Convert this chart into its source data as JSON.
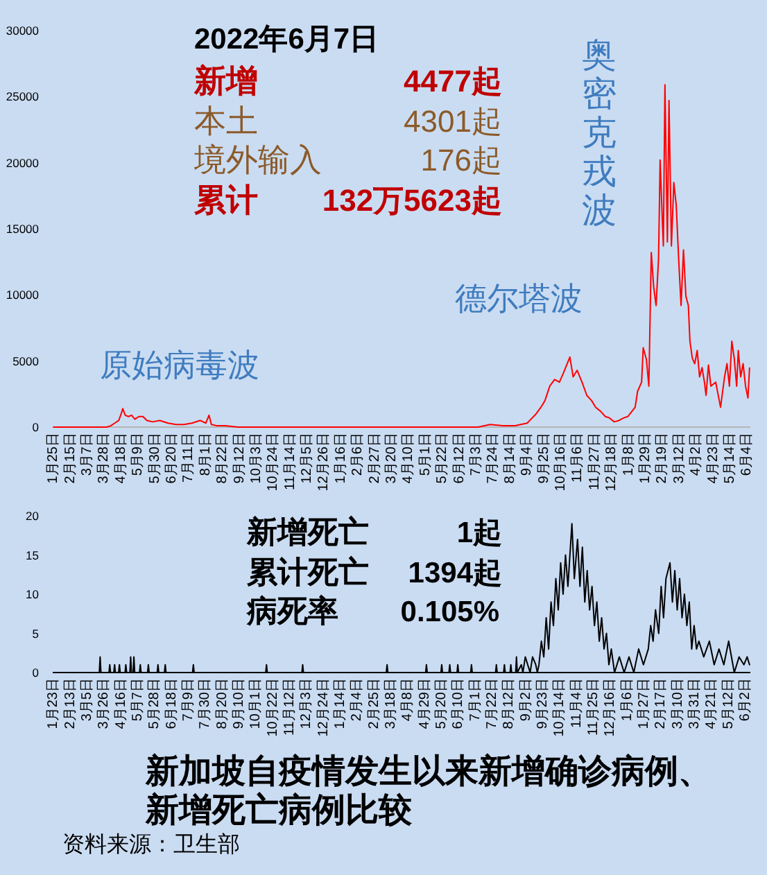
{
  "chart_data": [
    {
      "type": "line",
      "color": "#ff0000",
      "x": [
        "2020-01-25",
        "2020-02-10",
        "2020-02-15",
        "2020-03-01",
        "2020-03-10",
        "2020-03-20",
        "2020-03-31",
        "2020-04-05",
        "2020-04-10",
        "2020-04-15",
        "2020-04-18",
        "2020-04-20",
        "2020-04-23",
        "2020-04-27",
        "2020-05-01",
        "2020-05-05",
        "2020-05-10",
        "2020-05-15",
        "2020-05-20",
        "2020-05-27",
        "2020-06-05",
        "2020-06-15",
        "2020-06-25",
        "2020-07-05",
        "2020-07-15",
        "2020-07-25",
        "2020-08-01",
        "2020-08-05",
        "2020-08-08",
        "2020-08-15",
        "2020-08-25",
        "2020-09-10",
        "2020-10-01",
        "2020-11-15",
        "2020-12-31",
        "2021-02-15",
        "2021-04-01",
        "2021-05-01",
        "2021-05-20",
        "2021-06-15",
        "2021-07-05",
        "2021-07-20",
        "2021-08-05",
        "2021-08-20",
        "2021-09-04",
        "2021-09-15",
        "2021-09-21",
        "2021-09-26",
        "2021-10-02",
        "2021-10-08",
        "2021-10-14",
        "2021-10-19",
        "2021-10-27",
        "2021-10-31",
        "2021-11-05",
        "2021-11-11",
        "2021-11-17",
        "2021-11-23",
        "2021-11-28",
        "2021-12-04",
        "2021-12-10",
        "2021-12-15",
        "2021-12-21",
        "2021-12-27",
        "2022-01-02",
        "2022-01-07",
        "2022-01-16",
        "2022-01-19",
        "2022-01-24",
        "2022-01-26",
        "2022-01-30",
        "2022-02-02",
        "2022-02-05",
        "2022-02-08",
        "2022-02-11",
        "2022-02-14",
        "2022-02-16",
        "2022-02-18",
        "2022-02-20",
        "2022-02-22",
        "2022-02-25",
        "2022-02-27",
        "2022-03-02",
        "2022-03-05",
        "2022-03-08",
        "2022-03-11",
        "2022-03-14",
        "2022-03-17",
        "2022-03-20",
        "2022-03-23",
        "2022-03-25",
        "2022-03-28",
        "2022-03-31",
        "2022-04-03",
        "2022-04-06",
        "2022-04-09",
        "2022-04-12",
        "2022-04-14",
        "2022-04-17",
        "2022-04-20",
        "2022-04-26",
        "2022-05-02",
        "2022-05-07",
        "2022-05-10",
        "2022-05-13",
        "2022-05-16",
        "2022-05-19",
        "2022-05-22",
        "2022-05-24",
        "2022-05-27",
        "2022-05-30",
        "2022-06-02",
        "2022-06-05",
        "2022-06-07"
      ],
      "values": [
        0,
        0,
        0,
        0,
        0,
        0,
        0,
        100,
        300,
        500,
        1000,
        1400,
        900,
        800,
        900,
        600,
        800,
        800,
        500,
        400,
        500,
        300,
        200,
        200,
        300,
        500,
        300,
        900,
        200,
        100,
        100,
        0,
        0,
        0,
        0,
        0,
        0,
        0,
        0,
        0,
        0,
        200,
        100,
        100,
        300,
        1000,
        1500,
        2000,
        3100,
        3600,
        3400,
        4100,
        5300,
        3800,
        4300,
        3400,
        2400,
        2000,
        1500,
        1200,
        800,
        700,
        400,
        500,
        700,
        800,
        1500,
        2700,
        3400,
        6000,
        5100,
        3100,
        13200,
        10600,
        9200,
        12700,
        20200,
        16800,
        13700,
        25900,
        14000,
        24700,
        13700,
        18500,
        16800,
        12700,
        9200,
        13400,
        9900,
        9200,
        6500,
        5200,
        4800,
        5800,
        3800,
        4500,
        3400,
        2400,
        4700,
        3100,
        3400,
        1500,
        3800,
        4800,
        3100,
        6500,
        5200,
        3100,
        5800,
        3800,
        4800,
        3100,
        2200,
        4477
      ],
      "xlim": [
        "2020-01-24",
        "2022-06-08"
      ],
      "xticks": [
        {
          "value": "2020-01-25",
          "label": "1月25日"
        },
        {
          "value": "2020-02-15",
          "label": "2月15日"
        },
        {
          "value": "2020-03-07",
          "label": "3月7日"
        },
        {
          "value": "2020-03-28",
          "label": "3月28日"
        },
        {
          "value": "2020-04-18",
          "label": "4月18日"
        },
        {
          "value": "2020-05-09",
          "label": "5月9日"
        },
        {
          "value": "2020-05-30",
          "label": "5月30日"
        },
        {
          "value": "2020-06-20",
          "label": "6月20日"
        },
        {
          "value": "2020-07-11",
          "label": "7月11日"
        },
        {
          "value": "2020-08-01",
          "label": "8月1日"
        },
        {
          "value": "2020-08-22",
          "label": "8月22日"
        },
        {
          "value": "2020-09-12",
          "label": "9月12日"
        },
        {
          "value": "2020-10-03",
          "label": "10月3日"
        },
        {
          "value": "2020-10-24",
          "label": "10月24日"
        },
        {
          "value": "2020-11-14",
          "label": "11月14日"
        },
        {
          "value": "2020-12-05",
          "label": "12月5日"
        },
        {
          "value": "2020-12-26",
          "label": "12月26日"
        },
        {
          "value": "2021-01-16",
          "label": "1月16日"
        },
        {
          "value": "2021-02-06",
          "label": "2月6日"
        },
        {
          "value": "2021-02-27",
          "label": "2月27日"
        },
        {
          "value": "2021-03-20",
          "label": "3月20日"
        },
        {
          "value": "2021-04-10",
          "label": "4月10日"
        },
        {
          "value": "2021-05-01",
          "label": "5月1日"
        },
        {
          "value": "2021-05-22",
          "label": "5月22日"
        },
        {
          "value": "2021-06-12",
          "label": "6月12日"
        },
        {
          "value": "2021-07-03",
          "label": "7月3日"
        },
        {
          "value": "2021-07-24",
          "label": "7月24日"
        },
        {
          "value": "2021-08-14",
          "label": "8月14日"
        },
        {
          "value": "2021-09-04",
          "label": "9月4日"
        },
        {
          "value": "2021-09-25",
          "label": "9月25日"
        },
        {
          "value": "2021-10-16",
          "label": "10月16日"
        },
        {
          "value": "2021-11-06",
          "label": "11月6日"
        },
        {
          "value": "2021-11-27",
          "label": "11月27日"
        },
        {
          "value": "2021-12-18",
          "label": "12月18日"
        },
        {
          "value": "2022-01-08",
          "label": "1月8日"
        },
        {
          "value": "2022-01-29",
          "label": "1月29日"
        },
        {
          "value": "2022-02-19",
          "label": "2月19日"
        },
        {
          "value": "2022-03-12",
          "label": "3月12日"
        },
        {
          "value": "2022-04-02",
          "label": "4月2日"
        },
        {
          "value": "2022-04-23",
          "label": "4月23日"
        },
        {
          "value": "2022-05-14",
          "label": "5月14日"
        },
        {
          "value": "2022-06-04",
          "label": "6月4日"
        }
      ],
      "ylim": [
        0,
        30000
      ],
      "yticks": [
        0,
        5000,
        10000,
        15000,
        20000,
        25000,
        30000
      ],
      "annotations": [
        "2022年6月7日",
        "新增",
        "4477起",
        "本土",
        "4301起",
        "境外输入",
        "176起",
        "累计",
        "132万5623起",
        "原始病毒波",
        "德尔塔波",
        "奥密克戎波"
      ]
    },
    {
      "type": "line",
      "color": "#000000",
      "title": "新加坡自疫情发生以来新增确诊病例、新增死亡病例比较",
      "x": [
        "2020-01-23",
        "2020-03-20",
        "2020-03-21",
        "2020-03-22",
        "2020-04-01",
        "2020-04-02",
        "2020-04-03",
        "2020-04-07",
        "2020-04-08",
        "2020-04-09",
        "2020-04-13",
        "2020-04-14",
        "2020-04-15",
        "2020-04-21",
        "2020-04-22",
        "2020-04-23",
        "2020-04-27",
        "2020-04-28",
        "2020-04-29",
        "2020-05-01",
        "2020-05-02",
        "2020-05-03",
        "2020-05-09",
        "2020-05-10",
        "2020-05-11",
        "2020-05-19",
        "2020-05-20",
        "2020-05-21",
        "2020-05-31",
        "2020-06-01",
        "2020-06-02",
        "2020-06-09",
        "2020-06-10",
        "2020-06-11",
        "2020-07-14",
        "2020-07-15",
        "2020-07-16",
        "2020-10-13",
        "2020-10-14",
        "2020-10-15",
        "2020-11-27",
        "2020-11-28",
        "2020-11-29",
        "2021-03-12",
        "2021-03-13",
        "2021-03-14",
        "2021-04-30",
        "2021-05-01",
        "2021-05-02",
        "2021-05-19",
        "2021-05-20",
        "2021-05-21",
        "2021-05-29",
        "2021-05-30",
        "2021-05-31",
        "2021-06-08",
        "2021-06-09",
        "2021-06-10",
        "2021-06-25",
        "2021-06-26",
        "2021-06-27",
        "2021-07-26",
        "2021-07-27",
        "2021-07-28",
        "2021-08-05",
        "2021-08-06",
        "2021-08-07",
        "2021-08-13",
        "2021-08-14",
        "2021-08-15",
        "2021-08-20",
        "2021-08-21",
        "2021-08-22",
        "2021-08-27",
        "2021-08-29",
        "2021-09-01",
        "2021-09-04",
        "2021-09-07",
        "2021-09-10",
        "2021-09-14",
        "2021-09-16",
        "2021-09-18",
        "2021-09-21",
        "2021-09-24",
        "2021-09-27",
        "2021-09-30",
        "2021-10-03",
        "2021-10-06",
        "2021-10-09",
        "2021-10-12",
        "2021-10-15",
        "2021-10-18",
        "2021-10-21",
        "2021-10-24",
        "2021-10-29",
        "2021-11-01",
        "2021-11-05",
        "2021-11-08",
        "2021-11-11",
        "2021-11-14",
        "2021-11-17",
        "2021-11-20",
        "2021-11-23",
        "2021-11-26",
        "2021-11-29",
        "2021-12-02",
        "2021-12-05",
        "2021-12-08",
        "2021-12-11",
        "2021-12-14",
        "2021-12-17",
        "2021-12-21",
        "2021-12-27",
        "2022-01-02",
        "2022-01-08",
        "2022-01-14",
        "2022-01-20",
        "2022-01-26",
        "2022-02-01",
        "2022-02-04",
        "2022-02-07",
        "2022-02-10",
        "2022-02-14",
        "2022-02-17",
        "2022-02-20",
        "2022-02-23",
        "2022-02-28",
        "2022-03-03",
        "2022-03-06",
        "2022-03-09",
        "2022-03-12",
        "2022-03-15",
        "2022-03-18",
        "2022-03-21",
        "2022-03-24",
        "2022-03-27",
        "2022-03-30",
        "2022-04-02",
        "2022-04-05",
        "2022-04-11",
        "2022-04-18",
        "2022-04-24",
        "2022-04-30",
        "2022-05-06",
        "2022-05-12",
        "2022-05-19",
        "2022-05-25",
        "2022-05-31",
        "2022-06-04",
        "2022-06-07"
      ],
      "values": [
        0,
        0,
        2,
        0,
        0,
        1,
        0,
        0,
        1,
        0,
        0,
        1,
        0,
        0,
        1,
        0,
        0,
        2,
        0,
        0,
        2,
        0,
        0,
        1,
        0,
        0,
        1,
        0,
        0,
        1,
        0,
        0,
        1,
        0,
        0,
        1,
        0,
        0,
        1,
        0,
        0,
        1,
        0,
        0,
        1,
        0,
        0,
        1,
        0,
        0,
        1,
        0,
        0,
        1,
        0,
        0,
        1,
        0,
        0,
        1,
        0,
        0,
        1,
        0,
        0,
        1,
        0,
        0,
        1,
        0,
        0,
        2,
        0,
        1,
        0,
        2,
        1,
        0,
        2,
        1,
        0,
        1,
        4,
        2,
        7,
        3,
        9,
        6,
        12,
        8,
        14,
        10,
        15,
        11,
        19,
        12,
        17,
        11,
        16,
        9,
        13,
        8,
        11,
        6,
        9,
        4,
        7,
        3,
        5,
        1,
        3,
        0,
        2,
        0,
        2,
        0,
        3,
        1,
        3,
        6,
        4,
        8,
        5,
        11,
        7,
        12,
        14,
        9,
        13,
        8,
        12,
        7,
        10,
        6,
        9,
        3,
        6,
        3,
        4,
        2,
        4,
        1,
        3,
        1,
        4,
        0,
        2,
        1,
        2,
        1
      ],
      "xlim": [
        "2020-01-22",
        "2022-06-08"
      ],
      "xticks": [
        {
          "value": "2020-01-23",
          "label": "1月23日"
        },
        {
          "value": "2020-02-13",
          "label": "2月13日"
        },
        {
          "value": "2020-03-05",
          "label": "3月5日"
        },
        {
          "value": "2020-03-26",
          "label": "3月26日"
        },
        {
          "value": "2020-04-16",
          "label": "4月16日"
        },
        {
          "value": "2020-05-07",
          "label": "5月7日"
        },
        {
          "value": "2020-05-28",
          "label": "5月28日"
        },
        {
          "value": "2020-06-18",
          "label": "6月18日"
        },
        {
          "value": "2020-07-09",
          "label": "7月9日"
        },
        {
          "value": "2020-07-30",
          "label": "7月30日"
        },
        {
          "value": "2020-08-20",
          "label": "8月20日"
        },
        {
          "value": "2020-09-10",
          "label": "9月10日"
        },
        {
          "value": "2020-10-01",
          "label": "10月1日"
        },
        {
          "value": "2020-10-22",
          "label": "10月22日"
        },
        {
          "value": "2020-11-12",
          "label": "11月12日"
        },
        {
          "value": "2020-12-03",
          "label": "12月3日"
        },
        {
          "value": "2020-12-24",
          "label": "12月24日"
        },
        {
          "value": "2021-01-14",
          "label": "1月14日"
        },
        {
          "value": "2021-02-04",
          "label": "2月4日"
        },
        {
          "value": "2021-02-25",
          "label": "2月25日"
        },
        {
          "value": "2021-03-18",
          "label": "3月18日"
        },
        {
          "value": "2021-04-08",
          "label": "4月8日"
        },
        {
          "value": "2021-04-29",
          "label": "4月29日"
        },
        {
          "value": "2021-05-20",
          "label": "5月20日"
        },
        {
          "value": "2021-06-10",
          "label": "6月10日"
        },
        {
          "value": "2021-07-01",
          "label": "7月1日"
        },
        {
          "value": "2021-07-22",
          "label": "7月22日"
        },
        {
          "value": "2021-08-12",
          "label": "8月12日"
        },
        {
          "value": "2021-09-02",
          "label": "9月2日"
        },
        {
          "value": "2021-09-23",
          "label": "9月23日"
        },
        {
          "value": "2021-10-14",
          "label": "10月14日"
        },
        {
          "value": "2021-11-04",
          "label": "11月4日"
        },
        {
          "value": "2021-11-25",
          "label": "11月25日"
        },
        {
          "value": "2021-12-16",
          "label": "12月16日"
        },
        {
          "value": "2022-01-06",
          "label": "1月6日"
        },
        {
          "value": "2022-01-27",
          "label": "1月27日"
        },
        {
          "value": "2022-02-17",
          "label": "2月17日"
        },
        {
          "value": "2022-03-10",
          "label": "3月10日"
        },
        {
          "value": "2022-03-31",
          "label": "3月31日"
        },
        {
          "value": "2022-04-21",
          "label": "4月21日"
        },
        {
          "value": "2022-05-12",
          "label": "5月12日"
        },
        {
          "value": "2022-06-02",
          "label": "6月2日"
        }
      ],
      "ylim": [
        0,
        20
      ],
      "yticks": [
        0,
        5,
        10,
        15,
        20
      ],
      "annotations": [
        "新增死亡",
        "1起",
        "累计死亡",
        "1394起",
        "病死率",
        "0.105%",
        "资料来源：卫生部"
      ]
    }
  ]
}
